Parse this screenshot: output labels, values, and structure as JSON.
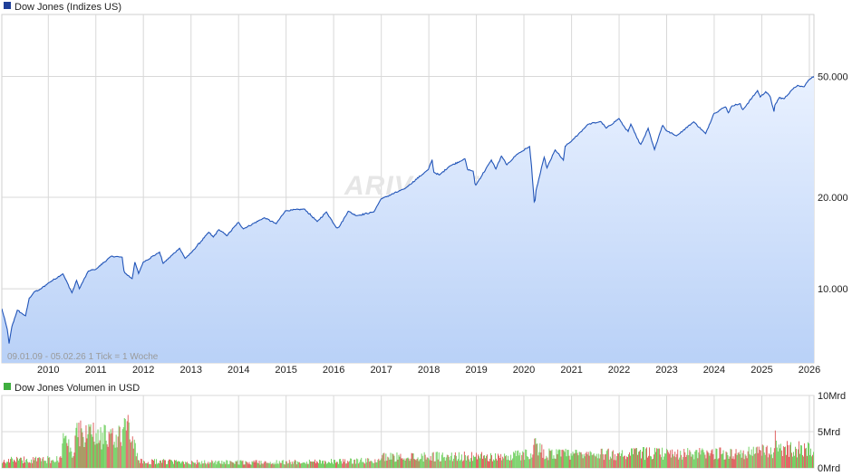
{
  "chart_data": [
    {
      "type": "area",
      "title": "Dow Jones (Indizes US)",
      "legend_color": "#1f3f99",
      "line_color": "#2255b8",
      "fill_top_color": "#e9f1ff",
      "fill_bottom_color": "#b9d1f7",
      "watermark": "ARIVA.DE",
      "note": "09.01.09 - 05.02.26   1 Tick = 1 Woche",
      "y_scale": "log",
      "ylim": [
        5700,
        80000
      ],
      "y_ticks": [
        {
          "value": 10000,
          "label": "10.000"
        },
        {
          "value": 20000,
          "label": "20.000"
        },
        {
          "value": 50000,
          "label": "50.000"
        }
      ],
      "xlim": [
        "2009-01-09",
        "2026-02-05"
      ],
      "x_ticks": [
        "2010",
        "2011",
        "2012",
        "2013",
        "2014",
        "2015",
        "2016",
        "2017",
        "2018",
        "2019",
        "2020",
        "2021",
        "2022",
        "2023",
        "2024",
        "2025",
        "2026"
      ],
      "series": [
        {
          "name": "Dow Jones",
          "x": [
            "2009-01-09",
            "2009-02-20",
            "2009-03-06",
            "2009-03-27",
            "2009-05-08",
            "2009-06-12",
            "2009-07-10",
            "2009-08-07",
            "2009-09-18",
            "2009-10-23",
            "2009-12-31",
            "2010-04-23",
            "2010-07-02",
            "2010-08-06",
            "2010-08-27",
            "2010-11-05",
            "2010-12-31",
            "2011-04-29",
            "2011-07-22",
            "2011-08-05",
            "2011-08-12",
            "2011-10-07",
            "2011-10-28",
            "2011-11-25",
            "2011-12-30",
            "2012-05-04",
            "2012-06-01",
            "2012-10-05",
            "2012-11-16",
            "2012-12-31",
            "2013-05-17",
            "2013-06-21",
            "2013-08-02",
            "2013-10-04",
            "2013-12-31",
            "2014-02-07",
            "2014-07-18",
            "2014-10-17",
            "2014-12-26",
            "2015-05-22",
            "2015-08-28",
            "2015-11-06",
            "2016-01-22",
            "2016-02-12",
            "2016-04-22",
            "2016-06-24",
            "2016-11-04",
            "2016-12-30",
            "2017-06-30",
            "2017-12-29",
            "2018-01-26",
            "2018-02-09",
            "2018-03-23",
            "2018-06-08",
            "2018-10-05",
            "2018-10-26",
            "2018-12-07",
            "2018-12-24",
            "2019-04-26",
            "2019-05-31",
            "2019-07-12",
            "2019-08-23",
            "2019-11-08",
            "2020-02-14",
            "2020-02-28",
            "2020-03-13",
            "2020-03-23",
            "2020-04-03",
            "2020-06-05",
            "2020-06-26",
            "2020-08-28",
            "2020-10-30",
            "2020-11-13",
            "2020-12-31",
            "2021-05-07",
            "2021-08-13",
            "2021-09-24",
            "2021-12-31",
            "2022-01-28",
            "2022-03-11",
            "2022-04-01",
            "2022-05-20",
            "2022-06-17",
            "2022-08-12",
            "2022-09-30",
            "2022-11-30",
            "2022-12-30",
            "2023-03-17",
            "2023-07-28",
            "2023-10-27",
            "2023-12-29",
            "2024-03-28",
            "2024-04-19",
            "2024-05-17",
            "2024-07-19",
            "2024-08-05",
            "2024-11-29",
            "2024-12-20",
            "2025-01-31",
            "2025-03-07",
            "2025-04-04",
            "2025-04-11",
            "2025-05-16",
            "2025-06-20",
            "2025-08-15",
            "2025-10-03",
            "2025-11-21",
            "2025-12-26",
            "2026-01-16",
            "2026-02-05"
          ],
          "values": [
            8600,
            7350,
            6600,
            7500,
            8500,
            8300,
            8150,
            9300,
            9800,
            9900,
            10430,
            11200,
            9700,
            10650,
            10000,
            11440,
            11580,
            12800,
            12700,
            11450,
            11270,
            10800,
            12230,
            11230,
            12220,
            13200,
            12120,
            13600,
            12590,
            13100,
            15350,
            14800,
            15650,
            14950,
            16580,
            15750,
            17130,
            16380,
            18050,
            18300,
            16650,
            17900,
            15900,
            15970,
            18000,
            17400,
            17900,
            19760,
            21350,
            24720,
            26600,
            24200,
            23700,
            25300,
            26800,
            24700,
            24400,
            21800,
            26540,
            24800,
            27330,
            25600,
            27700,
            29400,
            25400,
            21200,
            18590,
            21050,
            27100,
            25010,
            28650,
            26500,
            29480,
            30610,
            34780,
            35520,
            33800,
            36340,
            34720,
            32950,
            34820,
            31260,
            29890,
            33760,
            28730,
            34590,
            33150,
            31870,
            35460,
            32420,
            37690,
            39800,
            37980,
            40000,
            40660,
            38700,
            44910,
            42800,
            44550,
            42800,
            38310,
            40210,
            42650,
            42200,
            44950,
            46750,
            46240,
            48700,
            49350,
            50050
          ],
          "color": "#2255b8"
        }
      ]
    },
    {
      "type": "bar",
      "title": "Dow Jones Volumen in USD",
      "legend_color": "#3fae3f",
      "up_color": "#66cc55",
      "down_color": "#dd5555",
      "ylim": [
        0,
        10
      ],
      "y_ticks": [
        {
          "value": 0,
          "label": "0Mrd"
        },
        {
          "value": 5,
          "label": "5Mrd"
        },
        {
          "value": 10,
          "label": "10Mrd"
        }
      ],
      "volume_profile": {
        "x": [
          "2009-01-09",
          "2009-03-01",
          "2009-10-01",
          "2010-04-01",
          "2010-04-20",
          "2010-05-20",
          "2010-07-15",
          "2010-08-01",
          "2011-01-01",
          "2011-03-01",
          "2011-05-01",
          "2011-08-01",
          "2011-08-10",
          "2011-09-15",
          "2011-12-01",
          "2012-06-01",
          "2013-06-01",
          "2014-06-01",
          "2015-06-01",
          "2016-06-01",
          "2016-12-31",
          "2017-01-08",
          "2018-02-01",
          "2019-06-01",
          "2020-02-20",
          "2020-03-10",
          "2020-04-20",
          "2020-07-01",
          "2021-06-01",
          "2022-06-01",
          "2023-06-01",
          "2024-06-01",
          "2025-03-20",
          "2025-04-10",
          "2025-05-20",
          "2026-02-05"
        ],
        "avg": [
          0.9,
          1.1,
          1.1,
          1.2,
          3.5,
          3.0,
          2.0,
          4.6,
          4.6,
          4.2,
          4.3,
          4.6,
          6.6,
          4.3,
          0.9,
          0.85,
          0.75,
          0.75,
          0.85,
          0.95,
          1.0,
          1.5,
          1.6,
          1.5,
          1.9,
          3.4,
          2.6,
          1.9,
          1.8,
          2.0,
          1.9,
          2.0,
          2.3,
          3.7,
          2.6,
          2.6
        ]
      }
    }
  ]
}
